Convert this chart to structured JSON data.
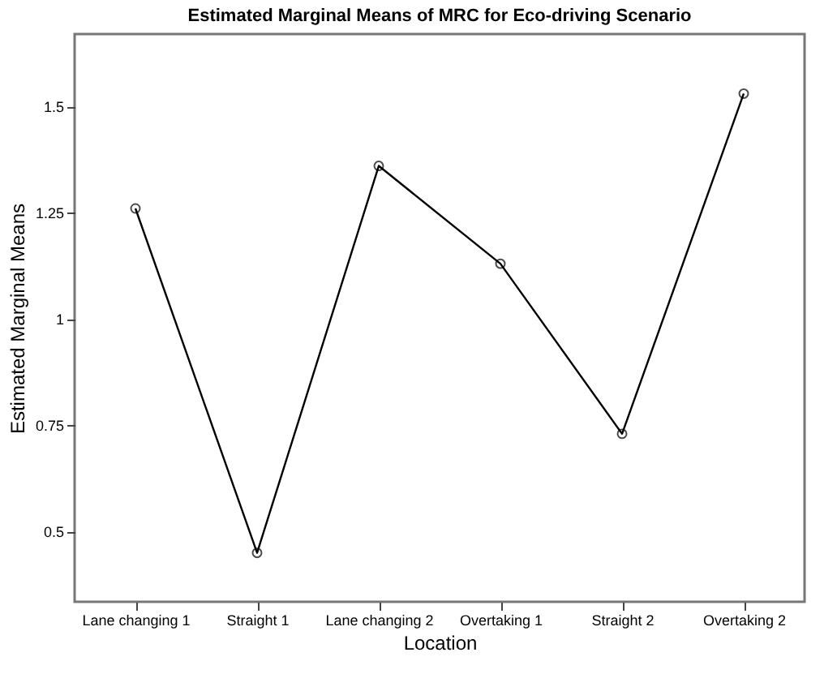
{
  "chart_data": {
    "type": "line",
    "title": "Estimated Marginal Means of MRC for Eco-driving Scenario",
    "xlabel": "Location",
    "ylabel": "Estimated Marginal Means",
    "categories": [
      "Lane changing 1",
      "Straight 1",
      "Lane changing 2",
      "Overtaking 1",
      "Straight 2",
      "Overtaking 2"
    ],
    "values": [
      1.26,
      0.45,
      1.36,
      1.13,
      0.73,
      1.53
    ],
    "color": "#000000",
    "ylim": [
      0.335,
      1.67
    ],
    "yticks": [
      0.5,
      0.75,
      1,
      1.25,
      1.5
    ],
    "grid": false,
    "marker": "circle",
    "line_style": "solid"
  }
}
